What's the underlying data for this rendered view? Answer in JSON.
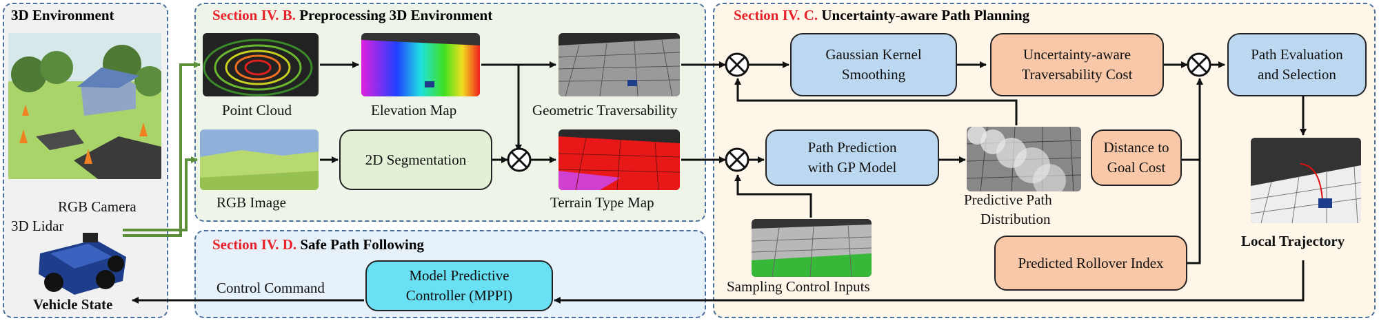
{
  "panels": {
    "env_title": "3D Environment",
    "pre_section": "Section IV. B.",
    "pre_title": "Preprocessing 3D Environment",
    "plan_section": "Section IV. C.",
    "plan_title": "Uncertainty-aware Path Planning",
    "follow_section": "Section IV. D.",
    "follow_title": "Safe Path Following"
  },
  "labels": {
    "rgb_camera": "RGB Camera",
    "lidar": "3D Lidar",
    "vehicle_state": "Vehicle State",
    "point_cloud": "Point Cloud",
    "elevation_map": "Elevation Map",
    "geometric_trav": "Geometric Traversability",
    "rgb_image": "RGB Image",
    "terrain_type": "Terrain Type Map",
    "control_command": "Control Command",
    "pred_path_dist_1": "Predictive Path",
    "pred_path_dist_2": "Distribution",
    "sampling": "Sampling Control Inputs",
    "local_traj": "Local Trajectory"
  },
  "boxes": {
    "seg": "2D Segmentation",
    "gks_1": "Gaussian Kernel",
    "gks_2": "Smoothing",
    "utc_1": "Uncertainty-aware",
    "utc_2": "Traversability  Cost",
    "pes_1": "Path Evaluation",
    "pes_2": "and Selection",
    "ppg_1": "Path Prediction",
    "ppg_2": "with GP Model",
    "dgc_1": "Distance to",
    "dgc_2": "Goal Cost",
    "pri": "Predicted Rollover Index",
    "mpc_1": "Model Predictive",
    "mpc_2": "Controller (MPPI)"
  },
  "colors": {
    "panel_border": "#4a6f9c",
    "section_red": "#e8222a",
    "box_blue": "#bcd8f0",
    "box_orange": "#f8c8a8",
    "box_green": "#e2f0d6",
    "box_cyan": "#6ae0f4",
    "sensor_line": "#5b8f3a"
  }
}
